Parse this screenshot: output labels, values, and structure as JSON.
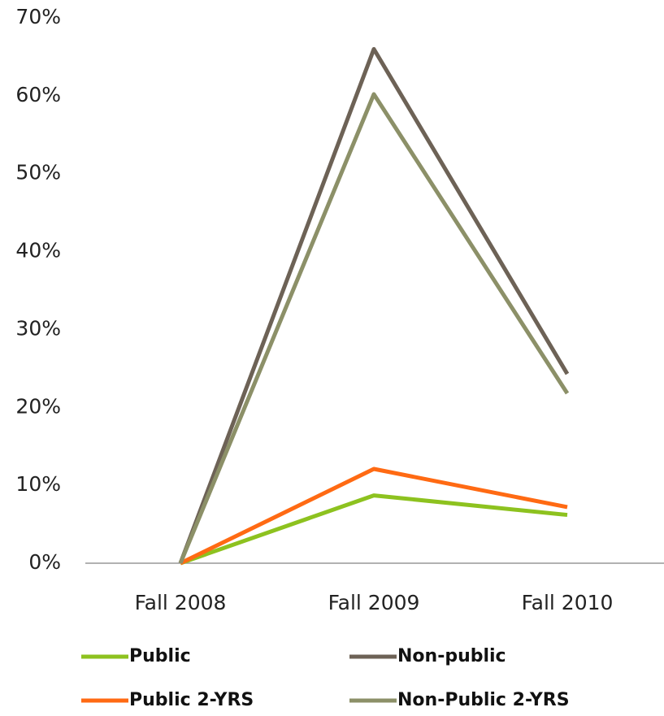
{
  "chart_data": {
    "type": "line",
    "categories": [
      "Fall 2008",
      "Fall 2009",
      "Fall 2010"
    ],
    "series": [
      {
        "name": "Public",
        "color": "#8dc21f",
        "values": [
          0,
          8.7,
          6.2
        ]
      },
      {
        "name": "Non-public",
        "color": "#6d6256",
        "values": [
          0,
          66.0,
          24.3
        ]
      },
      {
        "name": "Public 2-YRS",
        "color": "#ff6a13",
        "values": [
          0,
          12.1,
          7.2
        ]
      },
      {
        "name": "Non-Public 2-YRS",
        "color": "#8c9068",
        "values": [
          0,
          60.2,
          21.8
        ]
      }
    ],
    "ylim": [
      0,
      70
    ],
    "yticks": [
      {
        "value": 0,
        "label": "0%"
      },
      {
        "value": 10,
        "label": "10%"
      },
      {
        "value": 20,
        "label": "20%"
      },
      {
        "value": 30,
        "label": "30%"
      },
      {
        "value": 40,
        "label": "40%"
      },
      {
        "value": 50,
        "label": "50%"
      },
      {
        "value": 60,
        "label": "60%"
      },
      {
        "value": 70,
        "label": "70%"
      }
    ],
    "grid": false,
    "legend": "bottom"
  }
}
